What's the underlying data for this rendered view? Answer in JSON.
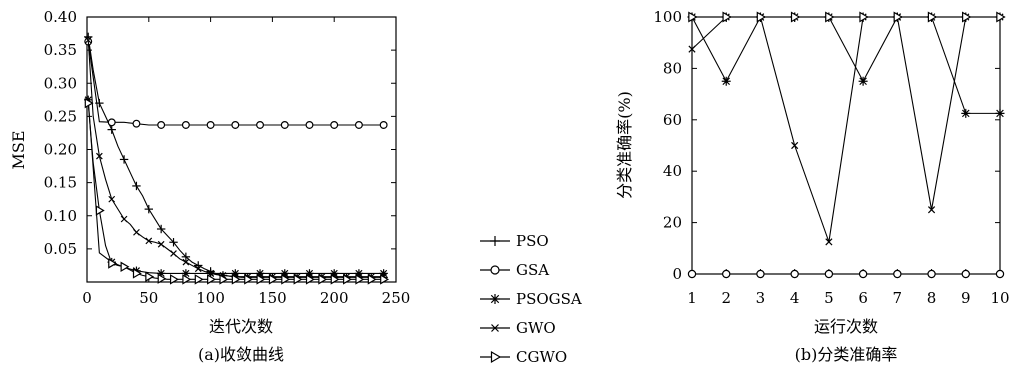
{
  "chart_data": [
    {
      "type": "line",
      "caption": "(a)收敛曲线",
      "xlabel": "迭代次数",
      "ylabel": "MSE",
      "xlim": [
        0,
        250
      ],
      "ylim": [
        0,
        0.4
      ],
      "xticks": [
        0,
        50,
        100,
        150,
        200,
        250
      ],
      "yticks": [
        0.05,
        0.1,
        0.15,
        0.2,
        0.25,
        0.3,
        0.35,
        0.4
      ],
      "ytick_labels": [
        "0.05",
        "0.10",
        "0.15",
        "0.20",
        "0.25",
        "0.30",
        "0.35",
        "0.40"
      ],
      "grid": false,
      "legend_position": "outside-right",
      "series": [
        {
          "name": "PSO",
          "marker": "plus",
          "x": [
            1,
            5,
            10,
            15,
            20,
            25,
            30,
            35,
            40,
            45,
            50,
            55,
            60,
            65,
            70,
            75,
            80,
            85,
            90,
            95,
            100,
            105,
            110,
            115,
            120,
            125,
            130,
            135,
            140,
            145,
            150,
            155,
            160,
            165,
            170,
            175,
            180,
            185,
            190,
            195,
            200,
            205,
            210,
            215,
            220,
            225,
            230,
            235,
            240
          ],
          "y": [
            0.37,
            0.32,
            0.27,
            0.25,
            0.23,
            0.205,
            0.185,
            0.165,
            0.145,
            0.13,
            0.11,
            0.095,
            0.08,
            0.07,
            0.06,
            0.048,
            0.038,
            0.03,
            0.025,
            0.02,
            0.016,
            0.012,
            0.01,
            0.009,
            0.008,
            0.007,
            0.007,
            0.007,
            0.007,
            0.007,
            0.007,
            0.007,
            0.007,
            0.007,
            0.007,
            0.007,
            0.007,
            0.007,
            0.007,
            0.007,
            0.007,
            0.007,
            0.007,
            0.007,
            0.007,
            0.007,
            0.007,
            0.007,
            0.007
          ]
        },
        {
          "name": "GSA",
          "marker": "circle",
          "x": [
            1,
            10,
            20,
            30,
            40,
            50,
            60,
            70,
            80,
            90,
            100,
            110,
            120,
            130,
            140,
            150,
            160,
            170,
            180,
            190,
            200,
            210,
            220,
            230,
            240
          ],
          "y": [
            0.363,
            0.242,
            0.241,
            0.241,
            0.239,
            0.237,
            0.237,
            0.237,
            0.237,
            0.237,
            0.237,
            0.237,
            0.237,
            0.237,
            0.237,
            0.237,
            0.237,
            0.237,
            0.237,
            0.237,
            0.237,
            0.237,
            0.237,
            0.237,
            0.237
          ]
        },
        {
          "name": "PSOGSA",
          "marker": "star",
          "x": [
            1,
            10,
            20,
            30,
            40,
            50,
            60,
            70,
            80,
            90,
            100,
            110,
            120,
            130,
            140,
            150,
            160,
            170,
            180,
            190,
            200,
            210,
            220,
            230,
            240
          ],
          "y": [
            0.275,
            0.044,
            0.03,
            0.022,
            0.017,
            0.014,
            0.013,
            0.013,
            0.013,
            0.013,
            0.013,
            0.013,
            0.013,
            0.013,
            0.013,
            0.013,
            0.013,
            0.013,
            0.013,
            0.013,
            0.013,
            0.013,
            0.013,
            0.013,
            0.013
          ]
        },
        {
          "name": "GWO",
          "marker": "x",
          "x": [
            1,
            5,
            10,
            15,
            20,
            25,
            30,
            35,
            40,
            45,
            50,
            55,
            60,
            65,
            70,
            75,
            80,
            85,
            90,
            95,
            100,
            105,
            110,
            115,
            120,
            125,
            130,
            135,
            140,
            145,
            150,
            155,
            160,
            165,
            170,
            175,
            180,
            185,
            190,
            195,
            200,
            205,
            210,
            215,
            220,
            225,
            230,
            235,
            240
          ],
          "y": [
            0.365,
            0.25,
            0.19,
            0.155,
            0.125,
            0.11,
            0.095,
            0.087,
            0.075,
            0.068,
            0.062,
            0.06,
            0.057,
            0.05,
            0.043,
            0.035,
            0.03,
            0.025,
            0.02,
            0.016,
            0.013,
            0.011,
            0.01,
            0.009,
            0.008,
            0.008,
            0.008,
            0.008,
            0.008,
            0.008,
            0.008,
            0.008,
            0.008,
            0.008,
            0.008,
            0.008,
            0.008,
            0.008,
            0.008,
            0.008,
            0.008,
            0.008,
            0.008,
            0.008,
            0.008,
            0.008,
            0.008,
            0.008,
            0.008
          ]
        },
        {
          "name": "CGWO",
          "marker": "triangle-right",
          "x": [
            1,
            5,
            10,
            15,
            20,
            25,
            30,
            35,
            40,
            45,
            50,
            55,
            60,
            65,
            70,
            75,
            80,
            85,
            90,
            95,
            100,
            105,
            110,
            115,
            120,
            125,
            130,
            135,
            140,
            145,
            150,
            155,
            160,
            165,
            170,
            175,
            180,
            185,
            190,
            195,
            200,
            205,
            210,
            215,
            220,
            225,
            230,
            235,
            240
          ],
          "y": [
            0.27,
            0.18,
            0.108,
            0.055,
            0.028,
            0.025,
            0.023,
            0.018,
            0.013,
            0.01,
            0.008,
            0.006,
            0.005,
            0.004,
            0.004,
            0.004,
            0.004,
            0.004,
            0.004,
            0.004,
            0.004,
            0.004,
            0.004,
            0.004,
            0.004,
            0.004,
            0.004,
            0.004,
            0.004,
            0.004,
            0.004,
            0.004,
            0.004,
            0.004,
            0.004,
            0.004,
            0.004,
            0.004,
            0.004,
            0.004,
            0.004,
            0.004,
            0.004,
            0.004,
            0.004,
            0.004,
            0.004,
            0.004,
            0.004
          ]
        }
      ]
    },
    {
      "type": "line",
      "caption": "(b)分类准确率",
      "xlabel": "运行次数",
      "ylabel": "分类准确率(%)",
      "xlim": [
        1,
        10
      ],
      "ylim": [
        0,
        100
      ],
      "xticks": [
        1,
        2,
        3,
        4,
        5,
        6,
        7,
        8,
        9,
        10
      ],
      "yticks": [
        0,
        20,
        40,
        60,
        80,
        100
      ],
      "grid": false,
      "series": [
        {
          "name": "PSO",
          "marker": "plus",
          "x": [
            1,
            2,
            3,
            4,
            5,
            6,
            7,
            8,
            9,
            10
          ],
          "y": [
            100,
            100,
            100,
            100,
            100,
            100,
            100,
            100,
            100,
            100
          ]
        },
        {
          "name": "GSA",
          "marker": "circle",
          "x": [
            1,
            2,
            3,
            4,
            5,
            6,
            7,
            8,
            9,
            10
          ],
          "y": [
            0,
            0,
            0,
            0,
            0,
            0,
            0,
            0,
            0,
            0
          ]
        },
        {
          "name": "PSOGSA",
          "marker": "star",
          "x": [
            1,
            2,
            3,
            4,
            5,
            6,
            7,
            8,
            9,
            10
          ],
          "y": [
            100,
            75,
            100,
            100,
            100,
            75,
            100,
            100,
            62.5,
            62.5
          ]
        },
        {
          "name": "GWO",
          "marker": "x",
          "x": [
            1,
            2,
            3,
            4,
            5,
            6,
            7,
            8,
            9,
            10
          ],
          "y": [
            87.5,
            100,
            100,
            50,
            12.5,
            100,
            100,
            25,
            100,
            100
          ]
        },
        {
          "name": "CGWO",
          "marker": "triangle-right",
          "x": [
            1,
            2,
            3,
            4,
            5,
            6,
            7,
            8,
            9,
            10
          ],
          "y": [
            100,
            100,
            100,
            100,
            100,
            100,
            100,
            100,
            100,
            100
          ]
        }
      ]
    }
  ],
  "legend": [
    "PSO",
    "GSA",
    "PSOGSA",
    "GWO",
    "CGWO"
  ]
}
